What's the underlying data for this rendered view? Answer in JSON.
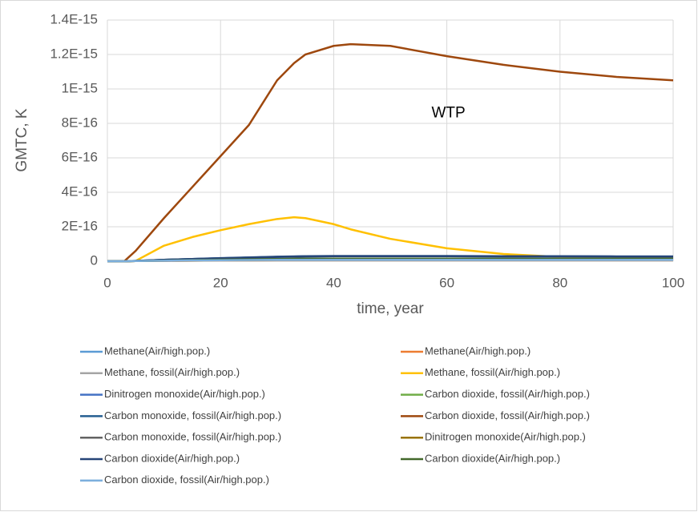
{
  "chart_data": {
    "type": "line",
    "xlabel": "time, year",
    "ylabel": "GMTC, K",
    "annotation": "WTP",
    "x": [
      0,
      3,
      5,
      10,
      15,
      20,
      25,
      30,
      33,
      35,
      40,
      43,
      50,
      60,
      70,
      80,
      90,
      100
    ],
    "xlim": [
      0,
      100
    ],
    "xticks": [
      0,
      20,
      40,
      60,
      80,
      100
    ],
    "ylim": [
      0,
      1.4e-15
    ],
    "yticks": [
      {
        "value": 0,
        "label": "0"
      },
      {
        "value": 2e-16,
        "label": "2E-16"
      },
      {
        "value": 4e-16,
        "label": "4E-16"
      },
      {
        "value": 6e-16,
        "label": "6E-16"
      },
      {
        "value": 8e-16,
        "label": "8E-16"
      },
      {
        "value": 1e-15,
        "label": "1E-15"
      },
      {
        "value": 1.2e-15,
        "label": "1.2E-15"
      },
      {
        "value": 1.4e-15,
        "label": "1.4E-15"
      }
    ],
    "grid": true,
    "legend": "bottom",
    "series": [
      {
        "name": "Methane(Air/high.pop.)",
        "color": "#5b9bd5",
        "values": [
          0,
          0,
          1e-18,
          3e-18,
          5e-18,
          6e-18,
          7e-18,
          8e-18,
          8e-18,
          8e-18,
          8e-18,
          8e-18,
          8e-18,
          8e-18,
          8e-18,
          8e-18,
          8e-18,
          8e-18
        ]
      },
      {
        "name": "Methane(Air/high.pop.)",
        "color": "#ed7d31",
        "values": [
          0,
          0,
          1e-18,
          2e-18,
          3e-18,
          4e-18,
          4e-18,
          5e-18,
          5e-18,
          5e-18,
          5e-18,
          5e-18,
          5e-18,
          5e-18,
          5e-18,
          5e-18,
          5e-18,
          5e-18
        ]
      },
      {
        "name": "Methane, fossil(Air/high.pop.)",
        "color": "#a5a5a5",
        "values": [
          0,
          0,
          1e-18,
          2e-18,
          3e-18,
          4e-18,
          4e-18,
          5e-18,
          5e-18,
          5e-18,
          5e-18,
          5e-18,
          5e-18,
          5e-18,
          5e-18,
          5e-18,
          5e-18,
          5e-18
        ]
      },
      {
        "name": "Methane, fossil(Air/high.pop.)",
        "color": "#ffc000",
        "values": [
          0,
          5e-19,
          2e-18,
          9e-17,
          1.4e-16,
          1.8e-16,
          2.15e-16,
          2.45e-16,
          2.55e-16,
          2.5e-16,
          2.15e-16,
          1.85e-16,
          1.3e-16,
          7.5e-17,
          4.2e-17,
          2.5e-17,
          1.8e-17,
          1.5e-17
        ]
      },
      {
        "name": "Dinitrogen monoxide(Air/high.pop.)",
        "color": "#4472c4",
        "values": [
          0,
          0,
          2e-18,
          8e-18,
          1.3e-17,
          1.7e-17,
          2.1e-17,
          2.5e-17,
          2.7e-17,
          2.8e-17,
          2.9e-17,
          2.9e-17,
          2.9e-17,
          2.9e-17,
          2.8e-17,
          2.8e-17,
          2.7e-17,
          2.7e-17
        ]
      },
      {
        "name": "Carbon dioxide, fossil(Air/high.pop.)",
        "color": "#70ad47",
        "values": [
          0,
          0,
          1e-18,
          4e-18,
          7e-18,
          9e-18,
          1.1e-17,
          1.3e-17,
          1.4e-17,
          1.5e-17,
          1.5e-17,
          1.5e-17,
          1.5e-17,
          1.5e-17,
          1.5e-17,
          1.4e-17,
          1.4e-17,
          1.4e-17
        ]
      },
      {
        "name": "Carbon monoxide, fossil(Air/high.pop.)",
        "color": "#255e91",
        "values": [
          0,
          0,
          2e-18,
          8e-18,
          1.3e-17,
          1.8e-17,
          2.2e-17,
          2.6e-17,
          2.8e-17,
          2.9e-17,
          3e-17,
          3e-17,
          3e-17,
          3e-17,
          2.9e-17,
          2.9e-17,
          2.8e-17,
          2.8e-17
        ]
      },
      {
        "name": "Carbon dioxide, fossil(Air/high.pop.)",
        "color": "#9e480e",
        "values": [
          0,
          5e-19,
          6e-17,
          2.5e-16,
          4.3e-16,
          6.1e-16,
          7.9e-16,
          1.05e-15,
          1.15e-15,
          1.2e-15,
          1.25e-15,
          1.26e-15,
          1.25e-15,
          1.19e-15,
          1.14e-15,
          1.1e-15,
          1.07e-15,
          1.05e-15
        ]
      },
      {
        "name": "Carbon monoxide, fossil(Air/high.pop.)",
        "color": "#636363",
        "values": [
          0,
          0,
          1e-18,
          4e-18,
          7e-18,
          9e-18,
          1.1e-17,
          1.3e-17,
          1.4e-17,
          1.5e-17,
          1.5e-17,
          1.5e-17,
          1.5e-17,
          1.5e-17,
          1.5e-17,
          1.4e-17,
          1.4e-17,
          1.4e-17
        ]
      },
      {
        "name": "Dinitrogen monoxide(Air/high.pop.)",
        "color": "#997300",
        "values": [
          0,
          0,
          1e-18,
          3e-18,
          5e-18,
          6e-18,
          7e-18,
          8e-18,
          8e-18,
          8e-18,
          8e-18,
          8e-18,
          8e-18,
          8e-18,
          8e-18,
          8e-18,
          8e-18,
          8e-18
        ]
      },
      {
        "name": "Carbon dioxide(Air/high.pop.)",
        "color": "#264478",
        "values": [
          0,
          0,
          2e-18,
          8e-18,
          1.3e-17,
          1.7e-17,
          2.1e-17,
          2.5e-17,
          2.7e-17,
          2.8e-17,
          2.9e-17,
          2.9e-17,
          2.9e-17,
          2.9e-17,
          2.8e-17,
          2.8e-17,
          2.7e-17,
          2.7e-17
        ]
      },
      {
        "name": "Carbon dioxide(Air/high.pop.)",
        "color": "#43682b",
        "values": [
          0,
          0,
          1e-18,
          4e-18,
          7e-18,
          9e-18,
          1.1e-17,
          1.3e-17,
          1.4e-17,
          1.5e-17,
          1.5e-17,
          1.5e-17,
          1.5e-17,
          1.5e-17,
          1.5e-17,
          1.4e-17,
          1.4e-17,
          1.4e-17
        ]
      },
      {
        "name": "Carbon dioxide, fossil(Air/high.pop.)",
        "color": "#7cafdd",
        "values": [
          0,
          0,
          1e-18,
          3e-18,
          5e-18,
          6e-18,
          7e-18,
          8e-18,
          8e-18,
          8e-18,
          8e-18,
          8e-18,
          8e-18,
          8e-18,
          8e-18,
          8e-18,
          8e-18,
          8e-18
        ]
      }
    ]
  }
}
